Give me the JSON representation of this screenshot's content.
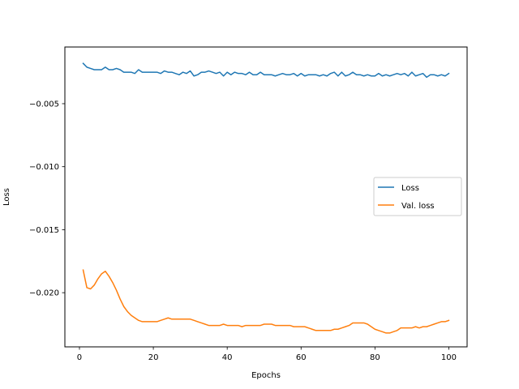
{
  "chart_data": {
    "type": "line",
    "xlabel": "Epochs",
    "ylabel": "Loss",
    "xlim": [
      -3.95,
      104.95
    ],
    "ylim": [
      -0.0243,
      -0.0005
    ],
    "xticks": [
      0,
      20,
      40,
      60,
      80,
      100
    ],
    "xtick_labels": [
      "0",
      "20",
      "40",
      "60",
      "80",
      "100"
    ],
    "yticks": [
      -0.005,
      -0.01,
      -0.015,
      -0.02
    ],
    "ytick_labels": [
      "−0.005",
      "−0.010",
      "−0.015",
      "−0.020"
    ],
    "grid": false,
    "legend_position": "center-right",
    "series": [
      {
        "name": "Loss",
        "color": "#1f77b4",
        "x": [
          1,
          2,
          3,
          4,
          5,
          6,
          7,
          8,
          9,
          10,
          11,
          12,
          13,
          14,
          15,
          16,
          17,
          18,
          19,
          20,
          21,
          22,
          23,
          24,
          25,
          26,
          27,
          28,
          29,
          30,
          31,
          32,
          33,
          34,
          35,
          36,
          37,
          38,
          39,
          40,
          41,
          42,
          43,
          44,
          45,
          46,
          47,
          48,
          49,
          50,
          51,
          52,
          53,
          54,
          55,
          56,
          57,
          58,
          59,
          60,
          61,
          62,
          63,
          64,
          65,
          66,
          67,
          68,
          69,
          70,
          71,
          72,
          73,
          74,
          75,
          76,
          77,
          78,
          79,
          80,
          81,
          82,
          83,
          84,
          85,
          86,
          87,
          88,
          89,
          90,
          91,
          92,
          93,
          94,
          95,
          96,
          97,
          98,
          99,
          100
        ],
        "values": [
          -0.0018,
          -0.0021,
          -0.0022,
          -0.0023,
          -0.0023,
          -0.0023,
          -0.0021,
          -0.0023,
          -0.0023,
          -0.0022,
          -0.0023,
          -0.0025,
          -0.0025,
          -0.0025,
          -0.0026,
          -0.0023,
          -0.0025,
          -0.0025,
          -0.0025,
          -0.0025,
          -0.0025,
          -0.0026,
          -0.0024,
          -0.0025,
          -0.0025,
          -0.0026,
          -0.0027,
          -0.0025,
          -0.0026,
          -0.0024,
          -0.0028,
          -0.0027,
          -0.0025,
          -0.0025,
          -0.0024,
          -0.0025,
          -0.0026,
          -0.0025,
          -0.0028,
          -0.0025,
          -0.0027,
          -0.0025,
          -0.0026,
          -0.0026,
          -0.0027,
          -0.0025,
          -0.0027,
          -0.0027,
          -0.0025,
          -0.0027,
          -0.0027,
          -0.0027,
          -0.0028,
          -0.0027,
          -0.0026,
          -0.0027,
          -0.0027,
          -0.0026,
          -0.0028,
          -0.0026,
          -0.0028,
          -0.0027,
          -0.0027,
          -0.0027,
          -0.0028,
          -0.0027,
          -0.0028,
          -0.0026,
          -0.0025,
          -0.0028,
          -0.0025,
          -0.0028,
          -0.0027,
          -0.0025,
          -0.0027,
          -0.0027,
          -0.0028,
          -0.0027,
          -0.0028,
          -0.0028,
          -0.0026,
          -0.0028,
          -0.0027,
          -0.0028,
          -0.0027,
          -0.0026,
          -0.0027,
          -0.0026,
          -0.0028,
          -0.0025,
          -0.0028,
          -0.0027,
          -0.0026,
          -0.0029,
          -0.0027,
          -0.0027,
          -0.0028,
          -0.0027,
          -0.0028,
          -0.0026
        ]
      },
      {
        "name": "Val. loss",
        "color": "#ff7f0e",
        "x": [
          1,
          2,
          3,
          4,
          5,
          6,
          7,
          8,
          9,
          10,
          11,
          12,
          13,
          14,
          15,
          16,
          17,
          18,
          19,
          20,
          21,
          22,
          23,
          24,
          25,
          26,
          27,
          28,
          29,
          30,
          31,
          32,
          33,
          34,
          35,
          36,
          37,
          38,
          39,
          40,
          41,
          42,
          43,
          44,
          45,
          46,
          47,
          48,
          49,
          50,
          51,
          52,
          53,
          54,
          55,
          56,
          57,
          58,
          59,
          60,
          61,
          62,
          63,
          64,
          65,
          66,
          67,
          68,
          69,
          70,
          71,
          72,
          73,
          74,
          75,
          76,
          77,
          78,
          79,
          80,
          81,
          82,
          83,
          84,
          85,
          86,
          87,
          88,
          89,
          90,
          91,
          92,
          93,
          94,
          95,
          96,
          97,
          98,
          99,
          100
        ],
        "values": [
          -0.0182,
          -0.0196,
          -0.0197,
          -0.0194,
          -0.0189,
          -0.0185,
          -0.0183,
          -0.0187,
          -0.0192,
          -0.0198,
          -0.0205,
          -0.0211,
          -0.0215,
          -0.0218,
          -0.022,
          -0.0222,
          -0.0223,
          -0.0223,
          -0.0223,
          -0.0223,
          -0.0223,
          -0.0222,
          -0.0221,
          -0.022,
          -0.0221,
          -0.0221,
          -0.0221,
          -0.0221,
          -0.0221,
          -0.0221,
          -0.0222,
          -0.0223,
          -0.0224,
          -0.0225,
          -0.0226,
          -0.0226,
          -0.0226,
          -0.0226,
          -0.0225,
          -0.0226,
          -0.0226,
          -0.0226,
          -0.0226,
          -0.0227,
          -0.0226,
          -0.0226,
          -0.0226,
          -0.0226,
          -0.0226,
          -0.0225,
          -0.0225,
          -0.0225,
          -0.0226,
          -0.0226,
          -0.0226,
          -0.0226,
          -0.0226,
          -0.0227,
          -0.0227,
          -0.0227,
          -0.0227,
          -0.0228,
          -0.0229,
          -0.023,
          -0.023,
          -0.023,
          -0.023,
          -0.023,
          -0.0229,
          -0.0229,
          -0.0228,
          -0.0227,
          -0.0226,
          -0.0224,
          -0.0224,
          -0.0224,
          -0.0224,
          -0.0225,
          -0.0227,
          -0.0229,
          -0.023,
          -0.0231,
          -0.0232,
          -0.0232,
          -0.0231,
          -0.023,
          -0.0228,
          -0.0228,
          -0.0228,
          -0.0228,
          -0.0227,
          -0.0228,
          -0.0227,
          -0.0227,
          -0.0226,
          -0.0225,
          -0.0224,
          -0.0223,
          -0.0223,
          -0.0222
        ]
      }
    ]
  }
}
